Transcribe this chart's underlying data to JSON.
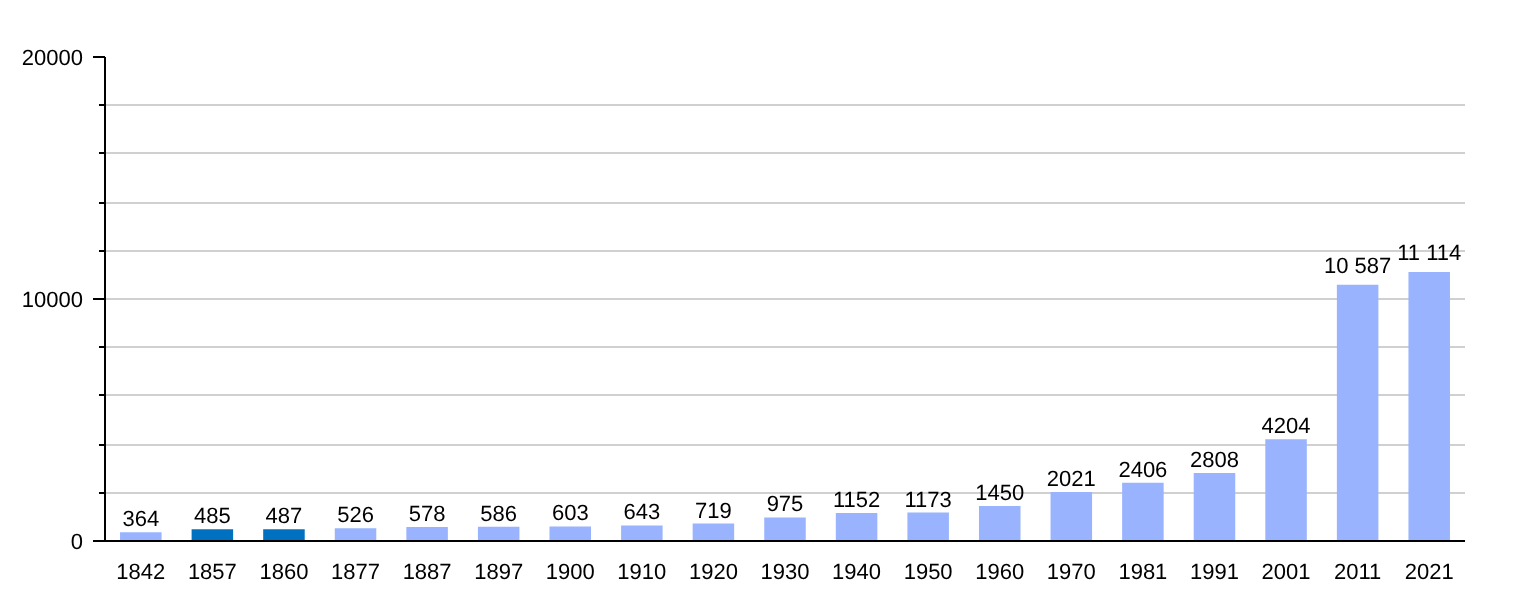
{
  "chart_data": {
    "type": "bar",
    "categories": [
      "1842",
      "1857",
      "1860",
      "1877",
      "1887",
      "1897",
      "1900",
      "1910",
      "1920",
      "1930",
      "1940",
      "1950",
      "1960",
      "1970",
      "1981",
      "1991",
      "2001",
      "2011",
      "2021"
    ],
    "values": [
      364,
      485,
      487,
      526,
      578,
      586,
      603,
      643,
      719,
      975,
      1152,
      1173,
      1450,
      2021,
      2406,
      2808,
      4204,
      10587,
      11114
    ],
    "value_labels": [
      "364",
      "485",
      "487",
      "526",
      "578",
      "586",
      "603",
      "643",
      "719",
      "975",
      "1152",
      "1173",
      "1450",
      "2021",
      "2406",
      "2808",
      "4204",
      "10 587",
      "11 114"
    ],
    "colors": [
      "#99b3ff",
      "#0070c0",
      "#0070c0",
      "#99b3ff",
      "#99b3ff",
      "#99b3ff",
      "#99b3ff",
      "#99b3ff",
      "#99b3ff",
      "#99b3ff",
      "#99b3ff",
      "#99b3ff",
      "#99b3ff",
      "#99b3ff",
      "#99b3ff",
      "#99b3ff",
      "#99b3ff",
      "#99b3ff",
      "#99b3ff"
    ],
    "ylim": [
      0,
      20000
    ],
    "yticks": [
      0,
      {
        "value": 2000,
        "label": null
      },
      {
        "value": 4000,
        "label": null
      },
      {
        "value": 6000,
        "label": null
      },
      {
        "value": 8000,
        "label": null
      },
      10000,
      {
        "value": 12000,
        "label": null
      },
      {
        "value": 14000,
        "label": null
      },
      {
        "value": 16000,
        "label": null
      },
      {
        "value": 18000,
        "label": null
      },
      20000
    ],
    "grid": "y"
  }
}
